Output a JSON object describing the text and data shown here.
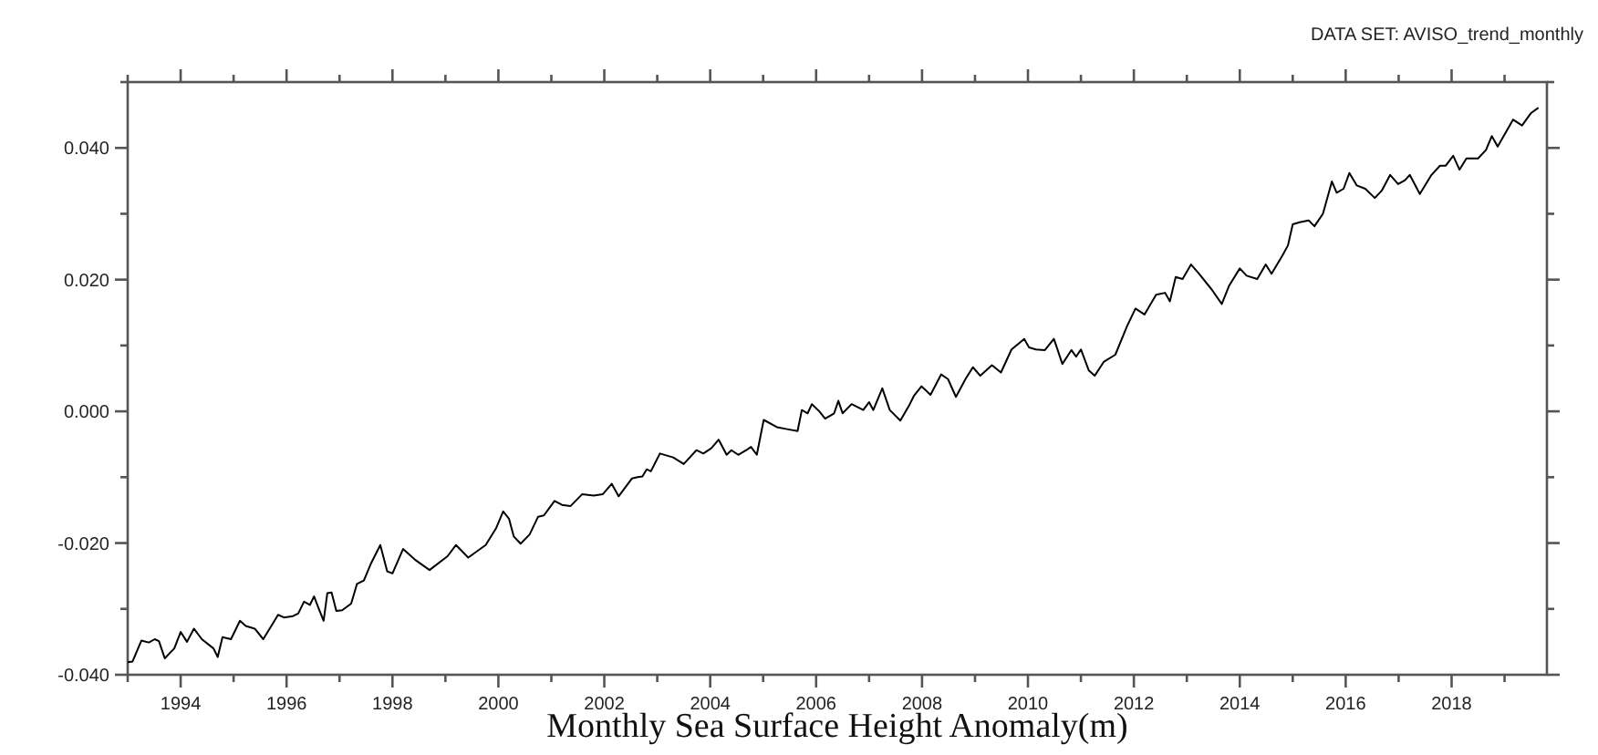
{
  "chart_data": {
    "type": "line",
    "title": "Monthly Sea Surface Height Anomaly(m)",
    "annotations": [
      "DATA SET: AVISO_trend_monthly"
    ],
    "xlim": [
      1993,
      2019.8
    ],
    "xticks": [
      {
        "value": 1993,
        "label": null
      },
      1994,
      {
        "value": 1995,
        "label": null
      },
      1996,
      {
        "value": 1997,
        "label": null
      },
      1998,
      {
        "value": 1999,
        "label": null
      },
      2000,
      {
        "value": 2001,
        "label": null
      },
      2002,
      {
        "value": 2003,
        "label": null
      },
      2004,
      {
        "value": 2005,
        "label": null
      },
      2006,
      {
        "value": 2007,
        "label": null
      },
      2008,
      {
        "value": 2009,
        "label": null
      },
      2010,
      {
        "value": 2011,
        "label": null
      },
      2012,
      {
        "value": 2013,
        "label": null
      },
      2014,
      {
        "value": 2015,
        "label": null
      },
      2016,
      {
        "value": 2017,
        "label": null
      },
      2018,
      {
        "value": 2019,
        "label": null
      }
    ],
    "ylim": [
      -0.04,
      0.05
    ],
    "yticks": [
      {
        "value": -0.04,
        "label": "-0.040"
      },
      {
        "value": -0.03,
        "label": null
      },
      {
        "value": -0.02,
        "label": "-0.020"
      },
      {
        "value": -0.01,
        "label": null
      },
      {
        "value": 0,
        "label": "0.000"
      },
      {
        "value": 0.01,
        "label": null
      },
      {
        "value": 0.02,
        "label": "0.020"
      },
      {
        "value": 0.03,
        "label": null
      },
      {
        "value": 0.04,
        "label": "0.040"
      },
      {
        "value": 0.05,
        "label": null
      }
    ],
    "grid": false,
    "series": [
      {
        "color": "#000000",
        "x": [
          1993.0,
          1993.09,
          1993.26,
          1993.4,
          1993.51,
          1993.59,
          1993.7,
          1993.88,
          1994.0,
          1994.12,
          1994.25,
          1994.4,
          1994.62,
          1994.7,
          1994.79,
          1994.95,
          1995.12,
          1995.23,
          1995.4,
          1995.56,
          1995.84,
          1995.95,
          1996.12,
          1996.22,
          1996.33,
          1996.44,
          1996.52,
          1996.6,
          1996.7,
          1996.77,
          1996.85,
          1996.94,
          1997.05,
          1997.22,
          1997.33,
          1997.46,
          1997.6,
          1997.77,
          1997.9,
          1998.0,
          1998.2,
          1998.42,
          1998.7,
          1999.04,
          1999.2,
          1999.43,
          1999.76,
          1999.96,
          2000.09,
          2000.2,
          2000.29,
          2000.42,
          2000.59,
          2000.75,
          2000.86,
          2001.06,
          2001.2,
          2001.36,
          2001.58,
          2001.8,
          2001.97,
          2002.14,
          2002.27,
          2002.52,
          2002.63,
          2002.72,
          2002.8,
          2002.88,
          2003.05,
          2003.3,
          2003.5,
          2003.74,
          2003.87,
          2004.02,
          2004.16,
          2004.31,
          2004.4,
          2004.53,
          2004.68,
          2004.77,
          2004.88,
          2005.01,
          2005.26,
          2005.45,
          2005.65,
          2005.73,
          2005.84,
          2005.92,
          2006.06,
          2006.17,
          2006.34,
          2006.42,
          2006.5,
          2006.67,
          2006.89,
          2007.0,
          2007.08,
          2007.25,
          2007.39,
          2007.59,
          2007.77,
          2007.85,
          2007.99,
          2008.16,
          2008.36,
          2008.49,
          2008.64,
          2008.82,
          2008.96,
          2009.1,
          2009.32,
          2009.49,
          2009.69,
          2009.93,
          2010.02,
          2010.15,
          2010.32,
          2010.49,
          2010.65,
          2010.82,
          2010.91,
          2011.0,
          2011.15,
          2011.26,
          2011.43,
          2011.65,
          2011.87,
          2012.03,
          2012.2,
          2012.42,
          2012.59,
          2012.68,
          2012.79,
          2012.92,
          2013.08,
          2013.23,
          2013.47,
          2013.66,
          2013.8,
          2014.0,
          2014.13,
          2014.33,
          2014.49,
          2014.6,
          2014.8,
          2014.91,
          2015.0,
          2015.13,
          2015.3,
          2015.41,
          2015.57,
          2015.74,
          2015.83,
          2015.96,
          2016.07,
          2016.21,
          2016.37,
          2016.55,
          2016.68,
          2016.84,
          2016.99,
          2017.12,
          2017.21,
          2017.4,
          2017.62,
          2017.78,
          2017.89,
          2018.03,
          2018.15,
          2018.28,
          2018.5,
          2018.65,
          2018.76,
          2018.87,
          2019.16,
          2019.33,
          2019.5,
          2019.64
        ],
        "values": [
          -0.0381,
          -0.038,
          -0.0348,
          -0.0351,
          -0.0346,
          -0.0349,
          -0.0375,
          -0.036,
          -0.0335,
          -0.035,
          -0.033,
          -0.0346,
          -0.036,
          -0.0373,
          -0.0343,
          -0.0346,
          -0.0318,
          -0.0326,
          -0.033,
          -0.0346,
          -0.0309,
          -0.0313,
          -0.0311,
          -0.0307,
          -0.0289,
          -0.0294,
          -0.0281,
          -0.0298,
          -0.0318,
          -0.0276,
          -0.0275,
          -0.0303,
          -0.0302,
          -0.0292,
          -0.0262,
          -0.0257,
          -0.023,
          -0.0203,
          -0.0243,
          -0.0246,
          -0.0209,
          -0.0225,
          -0.0241,
          -0.022,
          -0.0203,
          -0.0222,
          -0.0203,
          -0.0177,
          -0.0152,
          -0.0163,
          -0.019,
          -0.0201,
          -0.0187,
          -0.016,
          -0.0158,
          -0.0136,
          -0.0142,
          -0.0144,
          -0.0126,
          -0.0128,
          -0.0126,
          -0.011,
          -0.0129,
          -0.0102,
          -0.01,
          -0.0099,
          -0.0088,
          -0.0091,
          -0.0064,
          -0.007,
          -0.008,
          -0.0059,
          -0.0064,
          -0.0056,
          -0.0043,
          -0.0066,
          -0.0059,
          -0.0066,
          -0.0059,
          -0.0054,
          -0.0066,
          -0.0013,
          -0.0024,
          -0.0027,
          -0.003,
          0.0002,
          -0.0003,
          0.0011,
          0.0,
          -0.0011,
          -0.0003,
          0.0016,
          -0.0003,
          0.0011,
          0.0002,
          0.0014,
          0.0002,
          0.0035,
          0.0002,
          -0.0014,
          0.0011,
          0.0024,
          0.0038,
          0.0025,
          0.0056,
          0.0049,
          0.0022,
          0.0049,
          0.0067,
          0.0054,
          0.007,
          0.0059,
          0.0094,
          0.011,
          0.0097,
          0.0094,
          0.0093,
          0.011,
          0.0072,
          0.0093,
          0.0083,
          0.0094,
          0.0062,
          0.0054,
          0.0075,
          0.0086,
          0.0129,
          0.0156,
          0.0147,
          0.0177,
          0.018,
          0.0167,
          0.0204,
          0.0201,
          0.0223,
          0.0209,
          0.0185,
          0.0163,
          0.0191,
          0.0217,
          0.0206,
          0.0201,
          0.0223,
          0.0209,
          0.0236,
          0.0252,
          0.0284,
          0.0287,
          0.029,
          0.0281,
          0.03,
          0.0349,
          0.0332,
          0.0338,
          0.0362,
          0.0343,
          0.0338,
          0.0324,
          0.0335,
          0.0359,
          0.0345,
          0.0351,
          0.0359,
          0.033,
          0.0359,
          0.0373,
          0.0373,
          0.0388,
          0.0367,
          0.0384,
          0.0384,
          0.0397,
          0.0418,
          0.0402,
          0.0443,
          0.0434,
          0.0453,
          0.0461
        ]
      }
    ]
  }
}
